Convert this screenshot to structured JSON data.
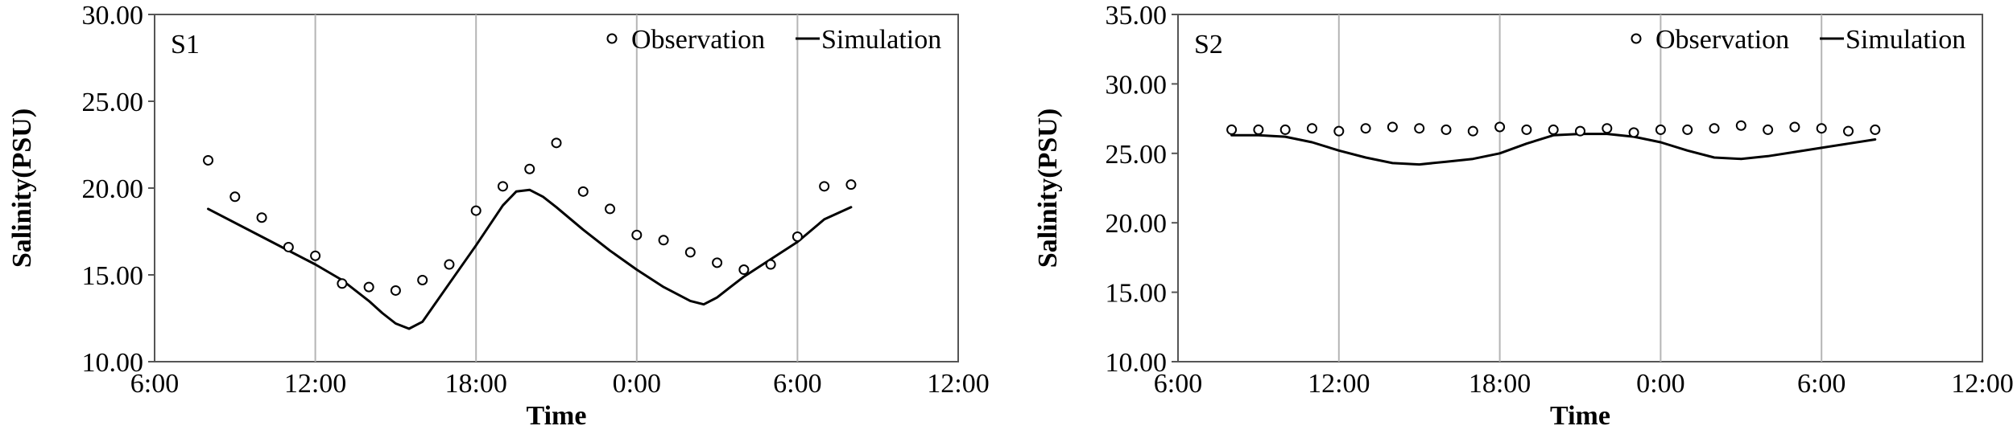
{
  "chart_data": [
    {
      "type": "line",
      "station_label": "S1",
      "xlabel": "Time",
      "ylabel": "Salinity(PSU)",
      "x_unit": "hours from 6:00",
      "xlim": [
        0,
        30
      ],
      "ylim": [
        10,
        30
      ],
      "x_ticks": [
        "6:00",
        "12:00",
        "18:00",
        "0:00",
        "6:00",
        "12:00"
      ],
      "y_ticks": [
        "10.00",
        "15.00",
        "20.00",
        "25.00",
        "30.00"
      ],
      "grid": "vertical",
      "legend": "top-right",
      "series": [
        {
          "name": "Observation",
          "style": "open-circle",
          "x": [
            2,
            3,
            4,
            5,
            6,
            7,
            8,
            9,
            10,
            11,
            12,
            13,
            14,
            15,
            16,
            17,
            18,
            19,
            20,
            21,
            22,
            23,
            24,
            25,
            26
          ],
          "y": [
            21.6,
            19.5,
            18.3,
            16.6,
            16.1,
            14.5,
            14.3,
            14.1,
            14.7,
            15.6,
            18.7,
            20.1,
            21.1,
            22.6,
            19.8,
            18.8,
            17.3,
            17.0,
            16.3,
            15.7,
            15.3,
            15.6,
            17.2,
            20.1,
            20.2
          ]
        },
        {
          "name": "Simulation",
          "style": "line",
          "x": [
            2,
            4,
            6,
            7,
            8,
            8.5,
            9,
            9.5,
            10,
            11,
            12,
            13,
            13.5,
            14,
            14.5,
            15,
            16,
            17,
            18,
            19,
            20,
            20.5,
            21,
            21.5,
            22,
            23,
            24,
            25,
            26
          ],
          "y": [
            18.8,
            17.2,
            15.6,
            14.7,
            13.5,
            12.8,
            12.2,
            11.9,
            12.3,
            14.5,
            16.7,
            19.0,
            19.8,
            19.9,
            19.5,
            18.9,
            17.6,
            16.4,
            15.3,
            14.3,
            13.5,
            13.3,
            13.7,
            14.3,
            14.9,
            15.9,
            16.9,
            18.2,
            18.9
          ]
        }
      ]
    },
    {
      "type": "line",
      "station_label": "S2",
      "xlabel": "Time",
      "ylabel": "Salinity(PSU)",
      "x_unit": "hours from 6:00",
      "xlim": [
        0,
        30
      ],
      "ylim": [
        10,
        35
      ],
      "x_ticks": [
        "6:00",
        "12:00",
        "18:00",
        "0:00",
        "6:00",
        "12:00"
      ],
      "y_ticks": [
        "10.00",
        "15.00",
        "20.00",
        "25.00",
        "30.00",
        "35.00"
      ],
      "grid": "vertical",
      "legend": "top-right",
      "series": [
        {
          "name": "Observation",
          "style": "open-circle",
          "x": [
            2,
            3,
            4,
            5,
            6,
            7,
            8,
            9,
            10,
            11,
            12,
            13,
            14,
            15,
            16,
            17,
            18,
            19,
            20,
            21,
            22,
            23,
            24,
            25,
            26
          ],
          "y": [
            26.7,
            26.7,
            26.7,
            26.8,
            26.6,
            26.8,
            26.9,
            26.8,
            26.7,
            26.6,
            26.9,
            26.7,
            26.7,
            26.6,
            26.8,
            26.5,
            26.7,
            26.7,
            26.8,
            27.0,
            26.7,
            26.9,
            26.8,
            26.6,
            26.7
          ]
        },
        {
          "name": "Simulation",
          "style": "line",
          "x": [
            2,
            3,
            4,
            5,
            6,
            7,
            8,
            9,
            10,
            11,
            12,
            13,
            14,
            15,
            16,
            17,
            18,
            19,
            20,
            21,
            22,
            23,
            24,
            25,
            26
          ],
          "y": [
            26.3,
            26.3,
            26.2,
            25.8,
            25.2,
            24.7,
            24.3,
            24.2,
            24.4,
            24.6,
            25.0,
            25.7,
            26.3,
            26.4,
            26.4,
            26.2,
            25.8,
            25.2,
            24.7,
            24.6,
            24.8,
            25.1,
            25.4,
            25.7,
            26.0
          ]
        }
      ]
    }
  ]
}
